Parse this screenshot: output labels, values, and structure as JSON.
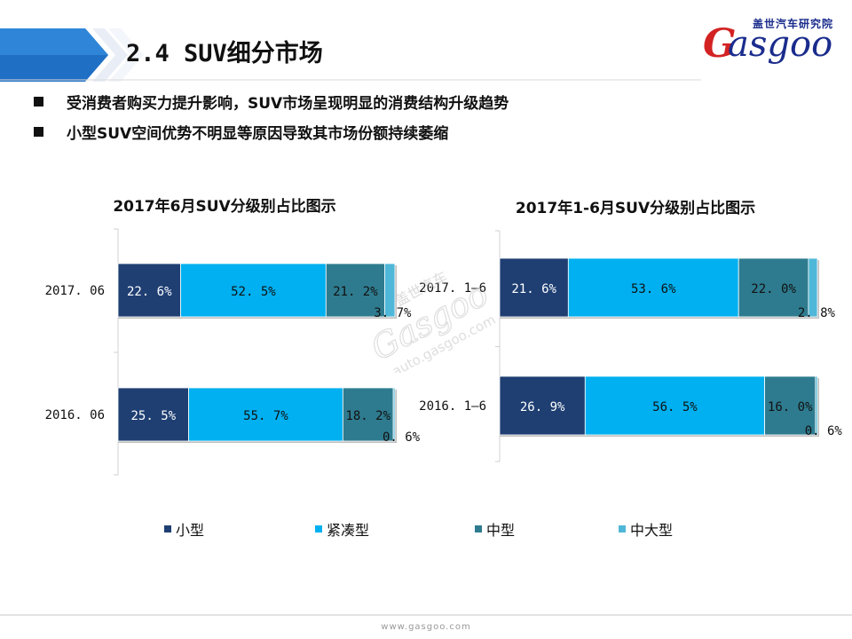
{
  "header": {
    "title": "2.4  SUV细分市场",
    "logo_cn": "盖世汽车研究院",
    "logo_en": "asgoo",
    "logo_g": "G"
  },
  "bullets": [
    "受消费者购买力提升影响，SUV市场呈现明显的消费结构升级趋势",
    "小型SUV空间优势不明显等原因导致其市场份额持续萎缩"
  ],
  "colors": {
    "small": "#1f3f73",
    "compact": "#00b0f0",
    "mid": "#2e7b8f",
    "midlarge": "#4fb7d8",
    "header_blue": "#1f6fc5"
  },
  "chart_data": [
    {
      "type": "bar",
      "orientation": "horizontal",
      "stacked": true,
      "title": "2017年6月SUV分级别占比图示",
      "categories": [
        "2017. 06",
        "2016. 06"
      ],
      "series": [
        {
          "name": "小型",
          "values": [
            22.6,
            25.5
          ]
        },
        {
          "name": "紧凑型",
          "values": [
            52.5,
            55.7
          ]
        },
        {
          "name": "中型",
          "values": [
            21.2,
            18.2
          ]
        },
        {
          "name": "中大型",
          "values": [
            3.7,
            0.6
          ]
        }
      ],
      "labels": [
        [
          "22. 6%",
          "52. 5%",
          "21. 2%",
          "3. 7%"
        ],
        [
          "25. 5%",
          "55. 7%",
          "18. 2%",
          "0. 6%"
        ]
      ],
      "xlim": [
        0,
        100
      ]
    },
    {
      "type": "bar",
      "orientation": "horizontal",
      "stacked": true,
      "title": "2017年1-6月SUV分级别占比图示",
      "categories": [
        "2017. 1–6",
        "2016. 1–6"
      ],
      "series": [
        {
          "name": "小型",
          "values": [
            21.6,
            26.9
          ]
        },
        {
          "name": "紧凑型",
          "values": [
            53.6,
            56.5
          ]
        },
        {
          "name": "中型",
          "values": [
            22.0,
            16.0
          ]
        },
        {
          "name": "中大型",
          "values": [
            2.8,
            0.6
          ]
        }
      ],
      "labels": [
        [
          "21. 6%",
          "53. 6%",
          "22. 0%",
          "2. 8%"
        ],
        [
          "26. 9%",
          "56. 5%",
          "16. 0%",
          "0. 6%"
        ]
      ],
      "xlim": [
        0,
        100
      ]
    }
  ],
  "legend": {
    "position": "bottom",
    "items": [
      {
        "label": "小型",
        "color": "#1f3f73"
      },
      {
        "label": "紧凑型",
        "color": "#00b0f0"
      },
      {
        "label": "中型",
        "color": "#2e7b8f"
      },
      {
        "label": "中大型",
        "color": "#4fb7d8"
      }
    ]
  },
  "watermark": {
    "cn": "盖世汽车",
    "en": "Gasgoo",
    "url": "auto.gasgoo.com"
  },
  "footer": {
    "url": "www.gasgoo.com"
  }
}
